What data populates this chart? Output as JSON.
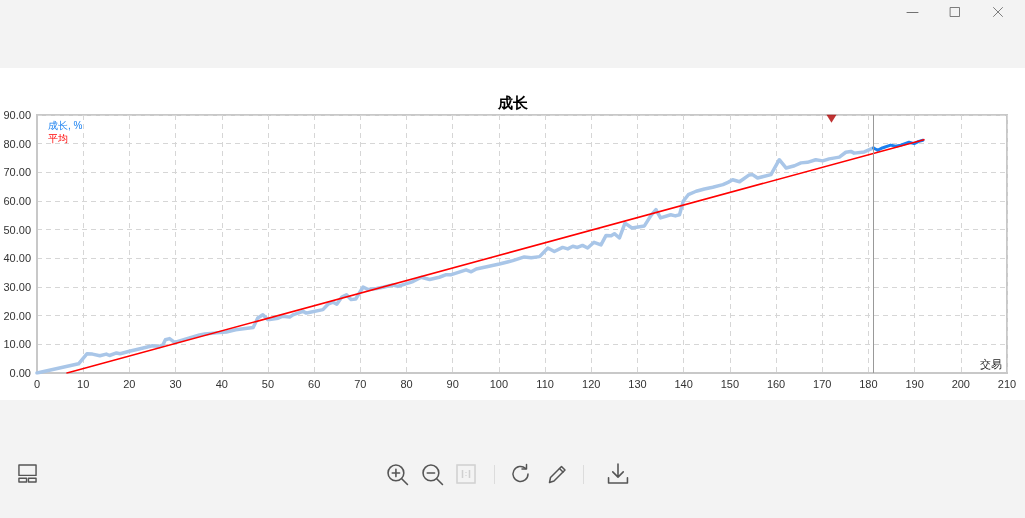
{
  "chart_data": {
    "type": "line",
    "title": "成长",
    "xlabel": "交易",
    "xlim": [
      0,
      210
    ],
    "xticks": [
      0,
      10,
      20,
      30,
      40,
      50,
      60,
      70,
      80,
      90,
      100,
      110,
      120,
      130,
      140,
      150,
      160,
      170,
      180,
      190,
      200,
      210
    ],
    "ylim": [
      0,
      90
    ],
    "yticks": [
      {
        "value": 0,
        "label": "0.00"
      },
      {
        "value": 10,
        "label": "10.00"
      },
      {
        "value": 20,
        "label": "20.00"
      },
      {
        "value": 30,
        "label": "30.00"
      },
      {
        "value": 40,
        "label": "40.00"
      },
      {
        "value": 50,
        "label": "50.00"
      },
      {
        "value": 60,
        "label": "60.00"
      },
      {
        "value": 70,
        "label": "70.00"
      },
      {
        "value": 80,
        "label": "80.00"
      },
      {
        "value": 90,
        "label": "90.00"
      }
    ],
    "grid": true,
    "legend": "top left",
    "marker": "none",
    "series": [
      {
        "color": "#a9c6e8",
        "x": [
          0,
          9,
          10.8,
          12,
          13.6,
          15,
          15.7,
          17.2,
          18,
          20,
          23,
          25,
          26.5,
          27.3,
          27.8,
          28.7,
          29.8,
          32.3,
          35.2,
          36.3,
          38.8,
          41,
          43,
          46.8,
          47.8,
          48.9,
          50,
          52.2,
          53.2,
          54.7,
          55.4,
          56.5,
          57.6,
          58.3,
          59.4,
          61.9,
          63,
          64.1,
          64.9,
          66,
          67,
          68,
          69,
          70.6,
          71.7,
          73.5,
          74.9,
          77,
          78.1,
          80,
          81.4,
          83.2,
          85,
          87.1,
          88.6,
          89.7,
          92.9,
          94,
          95.1,
          100.1,
          103,
          105.5,
          107,
          108.8,
          110.6,
          112,
          113.8,
          114.9,
          116,
          117,
          118.1,
          119.2,
          120.6,
          122.1,
          123.2,
          124.3,
          125,
          126.1,
          127.3,
          128.8,
          131.5,
          132.9,
          134,
          135,
          137.2,
          138.2,
          139.1,
          139.9,
          141,
          142.7,
          144.5,
          146.3,
          148.5,
          149.6,
          150.6,
          152.1,
          154.2,
          154.9,
          156,
          158.9,
          160.7,
          162.2,
          164,
          165.4,
          166.8,
          168.6,
          170.1,
          171.5,
          173.7,
          175.1,
          176.2,
          176.9,
          179.1,
          181.1
        ],
        "values": [
          0,
          3.2,
          6.7,
          6.6,
          6.0,
          6.6,
          6.1,
          7.0,
          6.7,
          7.6,
          8.7,
          9.5,
          9.2,
          9.9,
          11.6,
          12.0,
          10.7,
          11.9,
          13.3,
          13.6,
          14.0,
          14.3,
          15.1,
          15.9,
          19.2,
          20.3,
          18.6,
          19.1,
          19.8,
          19.5,
          20.3,
          20.9,
          21.5,
          20.9,
          21.3,
          22.1,
          24.0,
          24.7,
          24.0,
          26.5,
          27.3,
          25.6,
          25.8,
          30.0,
          29.1,
          29.5,
          29.9,
          30.7,
          30.2,
          31.2,
          31.9,
          33.4,
          32.6,
          33.4,
          34.3,
          34.3,
          36.0,
          35.3,
          36.3,
          38.0,
          39.2,
          40.5,
          40.2,
          40.6,
          43.6,
          42.4,
          43.8,
          43.3,
          44.2,
          43.8,
          44.5,
          43.6,
          45.6,
          44.7,
          48.0,
          47.9,
          48.6,
          47.1,
          52.3,
          50.6,
          51.3,
          54.9,
          57.0,
          54.1,
          55.2,
          54.8,
          55.2,
          59.9,
          62.2,
          63.4,
          64.2,
          64.8,
          65.7,
          66.5,
          67.4,
          66.7,
          69.1,
          69.2,
          68.0,
          69.2,
          74.4,
          71.5,
          72.3,
          73.3,
          73.5,
          74.4,
          74.0,
          74.7,
          75.3,
          77.0,
          77.3,
          76.7,
          77.1,
          78.5
        ]
      },
      {
        "name": "成长, %",
        "color": "#1a80f0",
        "x": [
          181.1,
          182,
          183,
          184.8,
          185.9,
          187,
          188.8,
          189.9,
          190.9,
          191.8
        ],
        "values": [
          78.5,
          77.7,
          78.5,
          79.5,
          79.1,
          79.5,
          80.5,
          80.0,
          80.8,
          81.2
        ]
      },
      {
        "name": "平均",
        "color": "#ff0000",
        "x": [
          6.5,
          192
        ],
        "values": [
          0,
          81.4
        ]
      },
      {
        "type": "scatter",
        "marker": "triangle",
        "color": "#b00000",
        "x": [
          172
        ],
        "values": [
          88.7
        ]
      }
    ],
    "ref_lines": [
      {
        "axis": "x",
        "value": 181,
        "color": "#999999"
      }
    ]
  }
}
